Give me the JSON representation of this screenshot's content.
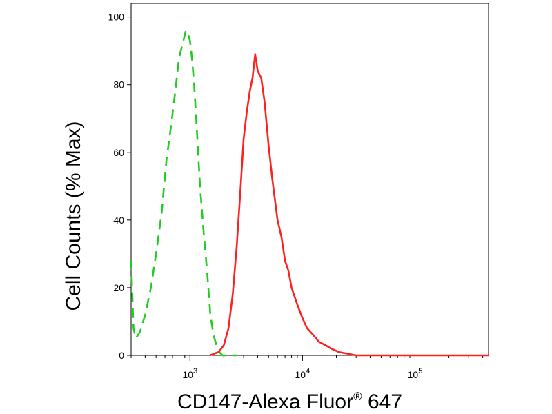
{
  "chart_data": {
    "type": "line",
    "xlabel": "CD147-Alexa Fluor",
    "xlabel_superscript": "®",
    "xlabel_suffix": " 647",
    "ylabel": "Cell Counts (% Max)",
    "x_scale": "log",
    "xlim": [
      300,
      450000
    ],
    "ylim": [
      0,
      104
    ],
    "grid": false,
    "y_ticks": [
      {
        "value": 0,
        "label": "0"
      },
      {
        "value": 20,
        "label": "20"
      },
      {
        "value": 40,
        "label": "40"
      },
      {
        "value": 60,
        "label": "60"
      },
      {
        "value": 80,
        "label": "80"
      },
      {
        "value": 100,
        "label": "100"
      }
    ],
    "x_ticks": [
      {
        "value": 1000,
        "base": "10",
        "exp": "3"
      },
      {
        "value": 10000,
        "base": "10",
        "exp": "4"
      },
      {
        "value": 100000,
        "base": "10",
        "exp": "5"
      }
    ],
    "series": [
      {
        "color": "#22cc22",
        "dash": "dashed",
        "x": [
          300,
          315,
          330,
          360,
          400,
          450,
          500,
          560,
          620,
          680,
          740,
          800,
          860,
          920,
          960,
          1000,
          1040,
          1090,
          1150,
          1230,
          1320,
          1420,
          1520,
          1620,
          1720,
          1820,
          1950,
          2100,
          2300,
          2600
        ],
        "y": [
          28,
          8,
          5,
          7,
          12,
          20,
          30,
          42,
          58,
          68,
          78,
          88,
          92,
          96,
          95,
          93,
          88,
          80,
          67,
          50,
          37,
          25,
          12,
          6,
          3,
          1,
          0,
          0,
          0,
          0
        ]
      },
      {
        "color": "#ff2020",
        "dash": "solid",
        "x": [
          1500,
          1800,
          2000,
          2200,
          2400,
          2600,
          2800,
          3000,
          3200,
          3400,
          3600,
          3800,
          4000,
          4300,
          4600,
          5000,
          5400,
          6000,
          6500,
          7000,
          7500,
          8000,
          9000,
          10000,
          11000,
          12500,
          14000,
          16000,
          18000,
          21000,
          25000,
          30000,
          40000,
          60000,
          100000,
          200000,
          450000
        ],
        "y": [
          0,
          1,
          3,
          8,
          18,
          32,
          48,
          64,
          72,
          78,
          82,
          89,
          84,
          82,
          75,
          62,
          52,
          40,
          35,
          28,
          25,
          20,
          15,
          11,
          8,
          6,
          4,
          3,
          2,
          1,
          0.5,
          0,
          0,
          0,
          0,
          0,
          0
        ]
      }
    ]
  }
}
